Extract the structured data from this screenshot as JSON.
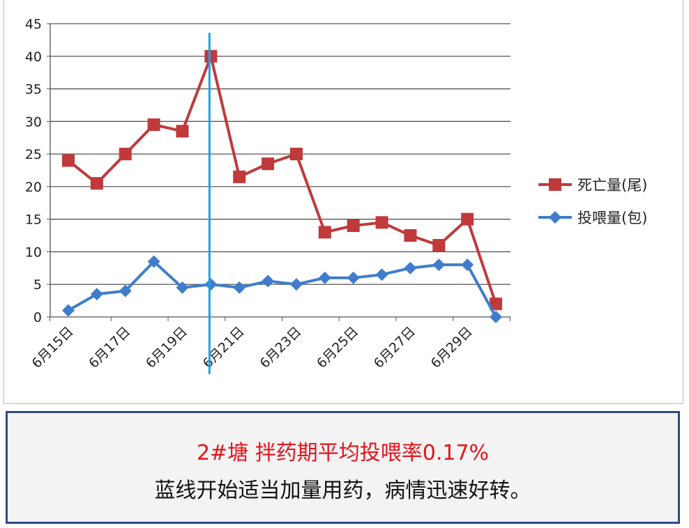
{
  "chart_data": {
    "type": "line",
    "categories": [
      "6月15日",
      "6月16日",
      "6月17日",
      "6月18日",
      "6月19日",
      "6月20日",
      "6月21日",
      "6月22日",
      "6月23日",
      "6月24日",
      "6月25日",
      "6月26日",
      "6月27日",
      "6月28日",
      "6月29日",
      "6月30日"
    ],
    "tick_labels": [
      "6月15日",
      "6月17日",
      "6月19日",
      "6月21日",
      "6月23日",
      "6月25日",
      "6月27日",
      "6月29日"
    ],
    "series": [
      {
        "name": "死亡量(尾)",
        "color": "#c0393b",
        "marker": "square",
        "values": [
          24,
          20.5,
          25,
          29.5,
          28.5,
          40,
          21.5,
          23.5,
          25,
          13,
          14,
          14.5,
          12.5,
          11,
          15,
          2
        ]
      },
      {
        "name": "投喂量(包)",
        "color": "#3f7dcc",
        "marker": "diamond",
        "values": [
          1,
          3.5,
          4,
          8.5,
          4.5,
          5,
          4.5,
          5.5,
          5,
          6,
          6,
          6.5,
          7.5,
          8,
          8,
          0
        ]
      }
    ],
    "yticks": [
      0,
      5,
      10,
      15,
      20,
      25,
      30,
      35,
      40,
      45
    ],
    "ylim": [
      0,
      45
    ],
    "grid": "horizontal",
    "legend": "right",
    "annotation_line": {
      "category": "6月20日",
      "color": "#1aa3e8"
    }
  },
  "note": {
    "line1": "2#塘 拌药期平均投喂率0.17%",
    "line2": "蓝线开始适当加量用药，病情迅速好转。"
  }
}
